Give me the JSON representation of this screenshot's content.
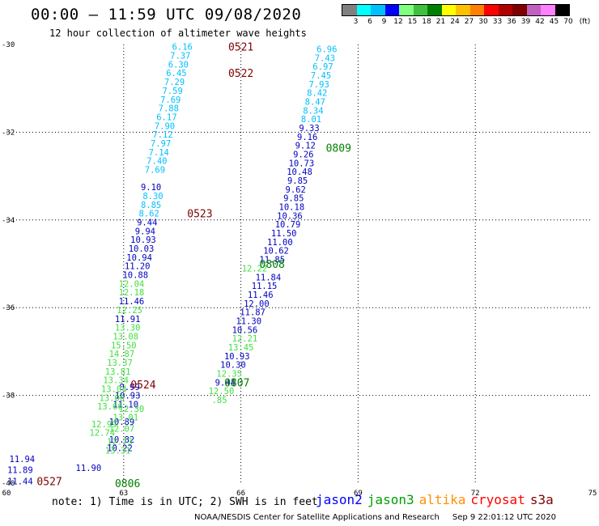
{
  "header": {
    "title": "00:00 – 11:59 UTC 09/08/2020",
    "subtitle": "12 hour collection of altimeter wave heights"
  },
  "colorbar": {
    "colors": [
      "#808080",
      "#00ffff",
      "#00bfff",
      "#0000ff",
      "#80ff80",
      "#40c040",
      "#008000",
      "#ffff00",
      "#ffc000",
      "#ff8000",
      "#ff0000",
      "#b00000",
      "#800000",
      "#c060c0",
      "#ff80ff",
      "#000000"
    ],
    "labels": [
      "3",
      "6",
      "9",
      "12",
      "15",
      "18",
      "21",
      "24",
      "27",
      "30",
      "33",
      "36",
      "39",
      "42",
      "45",
      "70",
      "(ft)"
    ]
  },
  "chart_data": {
    "type": "scatter",
    "xlim": [
      60,
      75
    ],
    "ylim": [
      -40,
      -30
    ],
    "x_ticks": [
      "60",
      "63",
      "66",
      "69",
      "72",
      "75"
    ],
    "y_ticks": [
      "-30",
      "-32",
      "-34",
      "-36",
      "-38",
      "-40"
    ],
    "grid": true,
    "series": [
      {
        "name": "jason2",
        "color": "#00bfff",
        "points": [
          {
            "lon": 64.5,
            "lat": -30.05,
            "v": "6.16"
          },
          {
            "lon": 64.45,
            "lat": -30.25,
            "v": "7.37"
          },
          {
            "lon": 64.4,
            "lat": -30.45,
            "v": "6.30"
          },
          {
            "lon": 64.35,
            "lat": -30.65,
            "v": "6.45"
          },
          {
            "lon": 64.3,
            "lat": -30.85,
            "v": "7.29"
          },
          {
            "lon": 64.25,
            "lat": -31.05,
            "v": "7.59"
          },
          {
            "lon": 64.2,
            "lat": -31.25,
            "v": "7.69"
          },
          {
            "lon": 64.15,
            "lat": -31.45,
            "v": "7.88"
          },
          {
            "lon": 64.1,
            "lat": -31.65,
            "v": "6.17"
          },
          {
            "lon": 64.05,
            "lat": -31.85,
            "v": "7.90"
          },
          {
            "lon": 64,
            "lat": -32.05,
            "v": "7.12"
          },
          {
            "lon": 63.95,
            "lat": -32.25,
            "v": "7.97"
          },
          {
            "lon": 63.9,
            "lat": -32.45,
            "v": "7.14"
          },
          {
            "lon": 63.85,
            "lat": -32.65,
            "v": "7.40"
          },
          {
            "lon": 63.8,
            "lat": -32.85,
            "v": "7.69"
          },
          {
            "lon": 63.75,
            "lat": -33.45,
            "v": "8.30"
          },
          {
            "lon": 63.7,
            "lat": -33.65,
            "v": "8.85"
          },
          {
            "lon": 63.65,
            "lat": -33.85,
            "v": "8.62"
          },
          {
            "lon": 68.2,
            "lat": -30.1,
            "v": "6.96"
          },
          {
            "lon": 68.15,
            "lat": -30.3,
            "v": "7.43"
          },
          {
            "lon": 68.1,
            "lat": -30.5,
            "v": "6.97"
          },
          {
            "lon": 68.05,
            "lat": -30.7,
            "v": "7.45"
          },
          {
            "lon": 68,
            "lat": -30.9,
            "v": "7.93"
          },
          {
            "lon": 67.95,
            "lat": -31.1,
            "v": "8.42"
          },
          {
            "lon": 67.9,
            "lat": -31.3,
            "v": "8.47"
          },
          {
            "lon": 67.85,
            "lat": -31.5,
            "v": "8.34"
          },
          {
            "lon": 67.8,
            "lat": -31.7,
            "v": "8.01"
          }
        ]
      },
      {
        "name": "jason2",
        "color": "#0000c0",
        "points": [
          {
            "lon": 63.7,
            "lat": -33.25,
            "v": "9.10"
          },
          {
            "lon": 63.6,
            "lat": -34.05,
            "v": "9.44"
          },
          {
            "lon": 63.55,
            "lat": -34.25,
            "v": "9.94"
          },
          {
            "lon": 63.5,
            "lat": -34.45,
            "v": "10.93"
          },
          {
            "lon": 63.45,
            "lat": -34.65,
            "v": "10.03"
          },
          {
            "lon": 63.4,
            "lat": -34.85,
            "v": "10.94"
          },
          {
            "lon": 63.35,
            "lat": -35.05,
            "v": "11.20"
          },
          {
            "lon": 63.3,
            "lat": -35.25,
            "v": "10.88"
          },
          {
            "lon": 63.2,
            "lat": -35.85,
            "v": "11.46"
          },
          {
            "lon": 63.1,
            "lat": -36.25,
            "v": "11.91"
          },
          {
            "lon": 63.15,
            "lat": -37.8,
            "v": "0.99"
          },
          {
            "lon": 63.1,
            "lat": -38.0,
            "v": "10.93"
          },
          {
            "lon": 63.05,
            "lat": -38.2,
            "v": "11.10"
          },
          {
            "lon": 62.95,
            "lat": -38.6,
            "v": "10.89"
          },
          {
            "lon": 62.95,
            "lat": -39.0,
            "v": "10.82"
          },
          {
            "lon": 62.9,
            "lat": -39.2,
            "v": "10.22"
          },
          {
            "lon": 62.1,
            "lat": -39.65,
            "v": "11.90"
          },
          {
            "lon": 60.4,
            "lat": -39.45,
            "v": "11.94"
          },
          {
            "lon": 60.35,
            "lat": -39.7,
            "v": "11.89"
          },
          {
            "lon": 60.35,
            "lat": -39.95,
            "v": "11.44"
          },
          {
            "lon": 67.75,
            "lat": -31.9,
            "v": "9.33"
          },
          {
            "lon": 67.7,
            "lat": -32.1,
            "v": "9.16"
          },
          {
            "lon": 67.65,
            "lat": -32.3,
            "v": "9.12"
          },
          {
            "lon": 67.6,
            "lat": -32.5,
            "v": "9.26"
          },
          {
            "lon": 67.55,
            "lat": -32.7,
            "v": "10.73"
          },
          {
            "lon": 67.5,
            "lat": -32.9,
            "v": "10.48"
          },
          {
            "lon": 67.45,
            "lat": -33.1,
            "v": "9.85"
          },
          {
            "lon": 67.4,
            "lat": -33.3,
            "v": "9.62"
          },
          {
            "lon": 67.35,
            "lat": -33.5,
            "v": "9.85"
          },
          {
            "lon": 67.3,
            "lat": -33.7,
            "v": "10.18"
          },
          {
            "lon": 67.25,
            "lat": -33.9,
            "v": "10.36"
          },
          {
            "lon": 67.2,
            "lat": -34.1,
            "v": "10.79"
          },
          {
            "lon": 67.1,
            "lat": -34.3,
            "v": "11.50"
          },
          {
            "lon": 67.0,
            "lat": -34.5,
            "v": "11.00"
          },
          {
            "lon": 66.9,
            "lat": -34.7,
            "v": "10.62"
          },
          {
            "lon": 66.8,
            "lat": -34.9,
            "v": "11.85"
          },
          {
            "lon": 66.7,
            "lat": -35.3,
            "v": "11.84"
          },
          {
            "lon": 66.6,
            "lat": -35.5,
            "v": "11.15"
          },
          {
            "lon": 66.5,
            "lat": -35.7,
            "v": "11.46"
          },
          {
            "lon": 66.4,
            "lat": -35.9,
            "v": "12.00"
          },
          {
            "lon": 66.3,
            "lat": -36.1,
            "v": "11.87"
          },
          {
            "lon": 66.2,
            "lat": -36.3,
            "v": "11.30"
          },
          {
            "lon": 66.1,
            "lat": -36.5,
            "v": "10.56"
          },
          {
            "lon": 65.9,
            "lat": -37.1,
            "v": "10.93"
          },
          {
            "lon": 65.8,
            "lat": -37.3,
            "v": "10.30"
          },
          {
            "lon": 65.6,
            "lat": -37.7,
            "v": "9.44"
          }
        ]
      },
      {
        "name": "jason3",
        "color": "#40e040",
        "points": [
          {
            "lon": 63.2,
            "lat": -35.45,
            "v": "12.04"
          },
          {
            "lon": 63.2,
            "lat": -35.65,
            "v": "12.18"
          },
          {
            "lon": 63.15,
            "lat": -36.05,
            "v": "12.25"
          },
          {
            "lon": 63.1,
            "lat": -36.45,
            "v": "13.30"
          },
          {
            "lon": 63.05,
            "lat": -36.65,
            "v": "13.08"
          },
          {
            "lon": 63.0,
            "lat": -36.85,
            "v": "15.50"
          },
          {
            "lon": 62.95,
            "lat": -37.05,
            "v": "14.87"
          },
          {
            "lon": 62.9,
            "lat": -37.25,
            "v": "13.37"
          },
          {
            "lon": 62.85,
            "lat": -37.45,
            "v": "13.81"
          },
          {
            "lon": 62.8,
            "lat": -37.65,
            "v": "13.34"
          },
          {
            "lon": 62.75,
            "lat": -37.85,
            "v": "13.04"
          },
          {
            "lon": 62.7,
            "lat": -38.05,
            "v": "13.06"
          },
          {
            "lon": 62.65,
            "lat": -38.25,
            "v": "13.66"
          },
          {
            "lon": 62.5,
            "lat": -38.65,
            "v": "12.99"
          },
          {
            "lon": 62.45,
            "lat": -38.85,
            "v": "12.74"
          },
          {
            "lon": 63.2,
            "lat": -38.3,
            "v": "12.30"
          },
          {
            "lon": 63.05,
            "lat": -38.5,
            "v": "13.01"
          },
          {
            "lon": 62.95,
            "lat": -38.75,
            "v": "12.07"
          },
          {
            "lon": 62.9,
            "lat": -39.05,
            "v": "12.73"
          },
          {
            "lon": 62.85,
            "lat": -39.25,
            "v": "13.31"
          },
          {
            "lon": 66.1,
            "lat": -36.7,
            "v": "12.21"
          },
          {
            "lon": 66.0,
            "lat": -36.9,
            "v": "13.45"
          },
          {
            "lon": 65.7,
            "lat": -37.5,
            "v": "12.35"
          },
          {
            "lon": 65.5,
            "lat": -37.9,
            "v": "12.50"
          },
          {
            "lon": 65.45,
            "lat": -38.1,
            "v": ".85"
          },
          {
            "lon": 66.35,
            "lat": -35.1,
            "v": "12.22"
          }
        ]
      }
    ],
    "pass_labels": [
      {
        "lon": 66.0,
        "lat": -30.05,
        "text": "0521",
        "color": "#800000"
      },
      {
        "lon": 66.0,
        "lat": -30.65,
        "text": "0522",
        "color": "#800000"
      },
      {
        "lon": 64.95,
        "lat": -33.85,
        "text": "0523",
        "color": "#800000"
      },
      {
        "lon": 63.5,
        "lat": -37.75,
        "text": "0524",
        "color": "#800000"
      },
      {
        "lon": 61.1,
        "lat": -39.95,
        "text": "0527",
        "color": "#800000"
      },
      {
        "lon": 68.5,
        "lat": -32.35,
        "text": "0809",
        "color": "#008000"
      },
      {
        "lon": 66.8,
        "lat": -35.0,
        "text": "0808",
        "color": "#008000"
      },
      {
        "lon": 65.9,
        "lat": -37.7,
        "text": "0807",
        "color": "#008000"
      },
      {
        "lon": 63.1,
        "lat": -40.0,
        "text": "0806",
        "color": "#008000"
      }
    ]
  },
  "footer": {
    "note": "note: 1) Time is in UTC; 2) SWH is in feet",
    "legend": [
      {
        "label": "jason2",
        "color": "#0000ff"
      },
      {
        "label": "jason3",
        "color": "#00a000"
      },
      {
        "label": "altika",
        "color": "#ff9000"
      },
      {
        "label": "cryosat",
        "color": "#ff0000"
      },
      {
        "label": "s3a",
        "color": "#800000"
      }
    ],
    "credit": "NOAA/NESDIS Center for Satellite Applications and Research",
    "timestamp": "Sep  9 22:01:12 UTC 2020"
  }
}
